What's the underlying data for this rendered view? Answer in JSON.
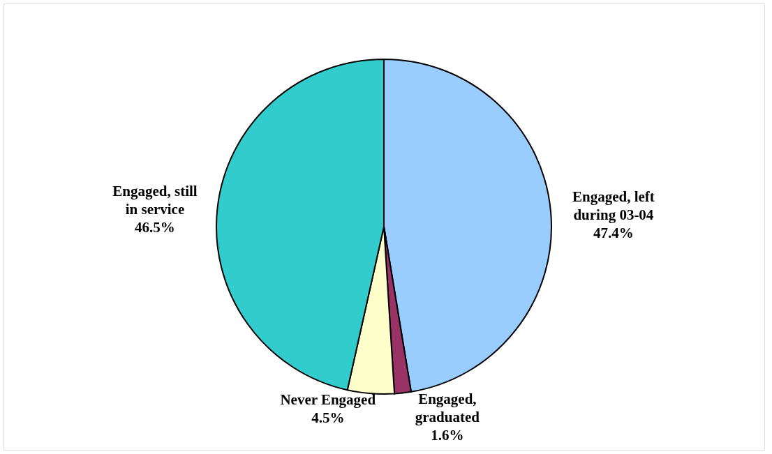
{
  "chart_data": {
    "type": "pie",
    "categories": [
      "Engaged, left during 03-04",
      "Engaged, graduated",
      "Never Engaged",
      "Engaged, still in service"
    ],
    "values": [
      47.4,
      1.6,
      4.5,
      46.5
    ],
    "colors": [
      "#99ccff",
      "#993366",
      "#ffffcc",
      "#33cccc"
    ],
    "value_labels": [
      "47.4%",
      "1.6%",
      "4.5%",
      "46.5%"
    ],
    "legend": false
  }
}
